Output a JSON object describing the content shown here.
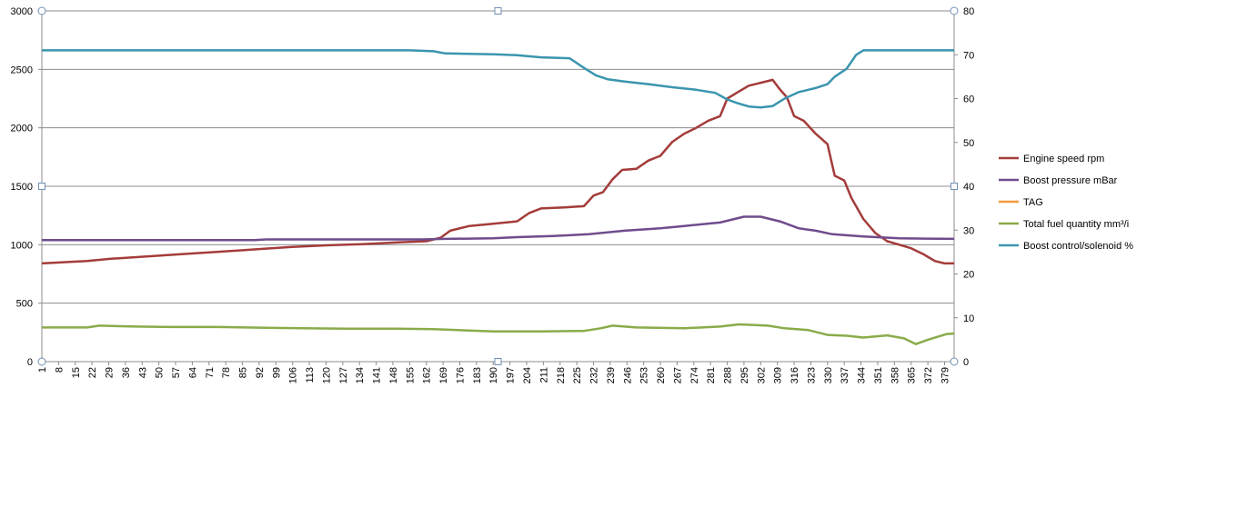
{
  "chart_data": {
    "type": "line",
    "x_tick_labels": [
      "1",
      "8",
      "15",
      "22",
      "29",
      "36",
      "43",
      "50",
      "57",
      "64",
      "71",
      "78",
      "85",
      "92",
      "99",
      "106",
      "113",
      "120",
      "127",
      "134",
      "141",
      "148",
      "155",
      "162",
      "169",
      "176",
      "183",
      "190",
      "197",
      "204",
      "211",
      "218",
      "225",
      "232",
      "239",
      "246",
      "253",
      "260",
      "267",
      "274",
      "281",
      "288",
      "295",
      "302",
      "309",
      "316",
      "323",
      "330",
      "337",
      "344",
      "351",
      "358",
      "365",
      "372",
      "379"
    ],
    "x_range": [
      1,
      383
    ],
    "y_left": {
      "range": [
        0,
        3000
      ],
      "ticks": [
        0,
        500,
        1000,
        1500,
        2000,
        2500,
        3000
      ]
    },
    "y_right": {
      "range": [
        0,
        80
      ],
      "ticks": [
        0,
        10,
        20,
        30,
        40,
        50,
        60,
        70,
        80
      ]
    },
    "grid": "horizontal",
    "legend_position": "right",
    "series": [
      {
        "name": "Engine speed rpm",
        "axis": "left",
        "color": "#A33C3A",
        "points": [
          [
            1,
            840
          ],
          [
            10,
            850
          ],
          [
            20,
            860
          ],
          [
            30,
            880
          ],
          [
            45,
            900
          ],
          [
            60,
            920
          ],
          [
            75,
            940
          ],
          [
            90,
            960
          ],
          [
            105,
            980
          ],
          [
            120,
            995
          ],
          [
            135,
            1005
          ],
          [
            150,
            1020
          ],
          [
            162,
            1030
          ],
          [
            168,
            1060
          ],
          [
            172,
            1120
          ],
          [
            180,
            1160
          ],
          [
            190,
            1180
          ],
          [
            200,
            1200
          ],
          [
            205,
            1270
          ],
          [
            210,
            1310
          ],
          [
            220,
            1320
          ],
          [
            228,
            1330
          ],
          [
            232,
            1420
          ],
          [
            236,
            1450
          ],
          [
            240,
            1560
          ],
          [
            244,
            1640
          ],
          [
            250,
            1650
          ],
          [
            255,
            1720
          ],
          [
            260,
            1760
          ],
          [
            265,
            1880
          ],
          [
            270,
            1950
          ],
          [
            275,
            2000
          ],
          [
            280,
            2060
          ],
          [
            285,
            2100
          ],
          [
            288,
            2250
          ],
          [
            292,
            2300
          ],
          [
            297,
            2360
          ],
          [
            303,
            2390
          ],
          [
            307,
            2410
          ],
          [
            310,
            2330
          ],
          [
            313,
            2260
          ],
          [
            316,
            2100
          ],
          [
            320,
            2060
          ],
          [
            325,
            1950
          ],
          [
            330,
            1860
          ],
          [
            333,
            1590
          ],
          [
            337,
            1550
          ],
          [
            340,
            1400
          ],
          [
            345,
            1220
          ],
          [
            350,
            1100
          ],
          [
            355,
            1030
          ],
          [
            360,
            1000
          ],
          [
            365,
            970
          ],
          [
            370,
            920
          ],
          [
            375,
            860
          ],
          [
            379,
            840
          ],
          [
            383,
            840
          ]
        ]
      },
      {
        "name": "Boost pressure mBar",
        "axis": "left",
        "color": "#6F4C8C",
        "points": [
          [
            1,
            1040
          ],
          [
            90,
            1040
          ],
          [
            95,
            1045
          ],
          [
            160,
            1045
          ],
          [
            170,
            1050
          ],
          [
            190,
            1055
          ],
          [
            200,
            1065
          ],
          [
            215,
            1075
          ],
          [
            230,
            1090
          ],
          [
            245,
            1120
          ],
          [
            260,
            1140
          ],
          [
            270,
            1160
          ],
          [
            285,
            1190
          ],
          [
            295,
            1240
          ],
          [
            302,
            1240
          ],
          [
            310,
            1200
          ],
          [
            318,
            1140
          ],
          [
            325,
            1120
          ],
          [
            332,
            1090
          ],
          [
            345,
            1070
          ],
          [
            360,
            1055
          ],
          [
            383,
            1050
          ]
        ]
      },
      {
        "name": "TAG",
        "axis": "right",
        "color": "#F39A3D",
        "points": []
      },
      {
        "name": "Total fuel quantity  mm³/i",
        "axis": "right",
        "color": "#8AAB4A",
        "points": [
          [
            1,
            7.8
          ],
          [
            20,
            7.8
          ],
          [
            25,
            8.2
          ],
          [
            40,
            8
          ],
          [
            55,
            7.9
          ],
          [
            75,
            7.9
          ],
          [
            95,
            7.7
          ],
          [
            110,
            7.6
          ],
          [
            130,
            7.5
          ],
          [
            150,
            7.5
          ],
          [
            165,
            7.4
          ],
          [
            175,
            7.2
          ],
          [
            190,
            6.9
          ],
          [
            210,
            6.9
          ],
          [
            228,
            7.0
          ],
          [
            235,
            7.6
          ],
          [
            240,
            8.2
          ],
          [
            250,
            7.8
          ],
          [
            270,
            7.6
          ],
          [
            285,
            8.0
          ],
          [
            293,
            8.5
          ],
          [
            305,
            8.2
          ],
          [
            312,
            7.6
          ],
          [
            322,
            7.2
          ],
          [
            330,
            6.1
          ],
          [
            338,
            5.9
          ],
          [
            345,
            5.5
          ],
          [
            355,
            6.0
          ],
          [
            362,
            5.3
          ],
          [
            367,
            4.0
          ],
          [
            372,
            5.0
          ],
          [
            380,
            6.3
          ],
          [
            383,
            6.4
          ]
        ]
      },
      {
        "name": "Boost control/solenoid %",
        "axis": "right",
        "color": "#3A95AE",
        "points": [
          [
            1,
            71
          ],
          [
            155,
            71
          ],
          [
            165,
            70.8
          ],
          [
            170,
            70.3
          ],
          [
            190,
            70.1
          ],
          [
            200,
            69.9
          ],
          [
            210,
            69.4
          ],
          [
            222,
            69.2
          ],
          [
            228,
            67.0
          ],
          [
            233,
            65.3
          ],
          [
            238,
            64.4
          ],
          [
            245,
            63.9
          ],
          [
            255,
            63.3
          ],
          [
            265,
            62.6
          ],
          [
            275,
            62.0
          ],
          [
            283,
            61.3
          ],
          [
            288,
            59.8
          ],
          [
            292,
            59.0
          ],
          [
            297,
            58.2
          ],
          [
            302,
            58.0
          ],
          [
            307,
            58.3
          ],
          [
            312,
            60.0
          ],
          [
            318,
            61.5
          ],
          [
            325,
            62.4
          ],
          [
            330,
            63.3
          ],
          [
            333,
            65.0
          ],
          [
            338,
            66.8
          ],
          [
            342,
            70
          ],
          [
            345,
            71
          ],
          [
            383,
            71
          ]
        ]
      }
    ]
  }
}
